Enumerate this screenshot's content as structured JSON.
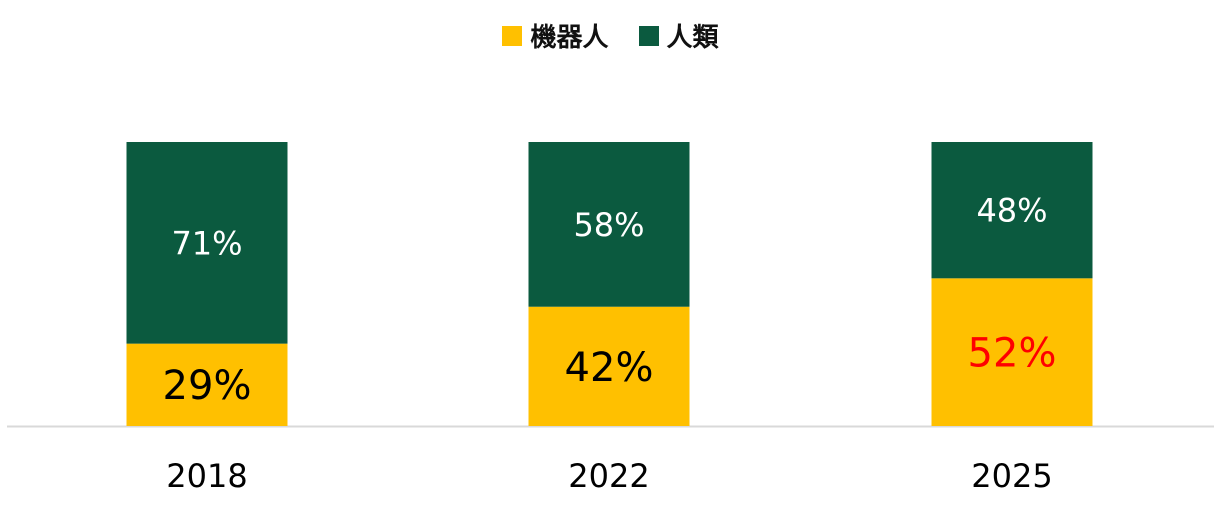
{
  "colors": {
    "robot": "#FFC000",
    "human": "#0B5A3F",
    "axis": "#D9D9D9",
    "human_label": "#FFFFFF",
    "robot_label": "#000000",
    "robot_label_highlight": "#FF0000"
  },
  "legend": {
    "items": [
      {
        "label": "機器人",
        "color": "#FFC000"
      },
      {
        "label": "人類",
        "color": "#0B5A3F"
      }
    ],
    "position": "top-center"
  },
  "chart_data": {
    "type": "bar",
    "stacked": true,
    "categories": [
      "2018",
      "2022",
      "2025"
    ],
    "series": [
      {
        "name": "機器人",
        "values": [
          29,
          42,
          52
        ],
        "labels": [
          "29%",
          "42%",
          "52%"
        ]
      },
      {
        "name": "人類",
        "values": [
          71,
          58,
          48
        ],
        "labels": [
          "71%",
          "58%",
          "48%"
        ]
      }
    ],
    "ylim": [
      0,
      100
    ],
    "grid": false,
    "legend": "top-center",
    "highlight": {
      "series": 0,
      "index": 2,
      "color": "#FF0000"
    }
  }
}
